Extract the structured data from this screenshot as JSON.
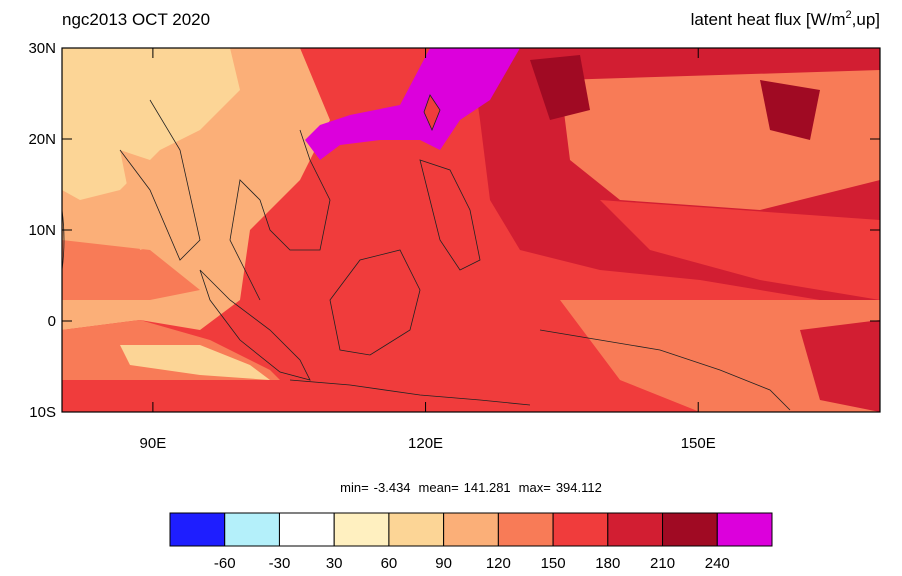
{
  "header": {
    "left": "ngc2013 OCT 2020",
    "right": {
      "text": "latent heat flux [W/m",
      "superscript": "2",
      "suffix": ",up]"
    }
  },
  "map": {
    "lonlim": [
      80,
      170
    ],
    "latlim": [
      -10,
      30
    ],
    "lat_ticks": [
      {
        "value": 30,
        "label": "30N"
      },
      {
        "value": 20,
        "label": "20N"
      },
      {
        "value": 10,
        "label": "10N"
      },
      0,
      {
        "value": -10,
        "label": "10S"
      }
    ],
    "lon_ticks": [
      {
        "value": 90,
        "label": "90E"
      },
      {
        "value": 120,
        "label": "120E"
      },
      {
        "value": 150,
        "label": "150E"
      }
    ]
  },
  "stats": [
    {
      "label": "min=",
      "value": -3.434
    },
    {
      "label": "mean=",
      "value": 141.281
    },
    {
      "label": "max=",
      "value": 394.112
    }
  ],
  "colorbar": {
    "levels": [
      -60,
      -30,
      30,
      60,
      90,
      120,
      150,
      180,
      210,
      240
    ],
    "colors": [
      "#1e1eff",
      "#b4f0fa",
      "#ffffff",
      "#fff0c0",
      "#fcd596",
      "#fbaf78",
      "#f87b57",
      "#f03c3c",
      "#d21e32",
      "#a00a23",
      "#dc00dc"
    ]
  }
}
